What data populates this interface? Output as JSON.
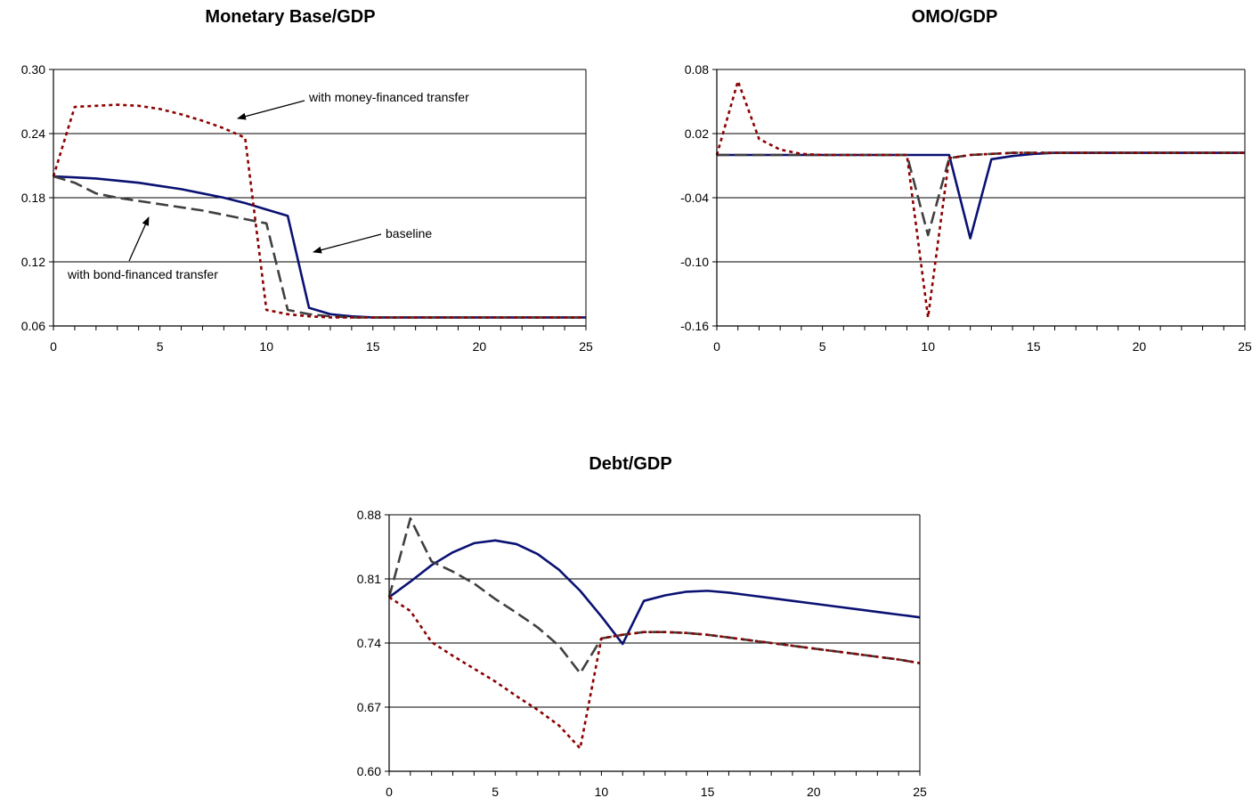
{
  "chart_data": [
    {
      "type": "line",
      "title": "Monetary Base/GDP",
      "x": [
        0,
        1,
        2,
        3,
        4,
        5,
        6,
        7,
        8,
        9,
        10,
        11,
        12,
        13,
        14,
        15,
        16,
        17,
        18,
        19,
        20,
        21,
        22,
        23,
        24,
        25
      ],
      "xlim": [
        0,
        25
      ],
      "xticks": [
        "0",
        "5",
        "10",
        "15",
        "20",
        "25"
      ],
      "ylim": [
        0.06,
        0.3
      ],
      "yticks": [
        "0.06",
        "0.12",
        "0.18",
        "0.24",
        "0.30"
      ],
      "grid": "horizontal",
      "series": [
        {
          "style": "solid",
          "color": "#0a1172",
          "values": [
            0.2,
            0.199,
            0.198,
            0.196,
            0.194,
            0.191,
            0.188,
            0.184,
            0.18,
            0.175,
            0.169,
            0.163,
            0.077,
            0.071,
            0.069,
            0.068,
            0.068,
            0.068,
            0.068,
            0.068,
            0.068,
            0.068,
            0.068,
            0.068,
            0.068,
            0.068
          ]
        },
        {
          "style": "dashed",
          "color": "#404040",
          "values": [
            0.2,
            0.194,
            0.184,
            0.18,
            0.177,
            0.174,
            0.171,
            0.168,
            0.164,
            0.16,
            0.156,
            0.075,
            0.071,
            0.069,
            0.068,
            0.068,
            0.068,
            0.068,
            0.068,
            0.068,
            0.068,
            0.068,
            0.068,
            0.068,
            0.068,
            0.068
          ]
        },
        {
          "style": "dotted",
          "color": "#8b0000",
          "values": [
            0.2,
            0.265,
            0.266,
            0.267,
            0.266,
            0.263,
            0.258,
            0.252,
            0.245,
            0.236,
            0.075,
            0.071,
            0.069,
            0.068,
            0.068,
            0.068,
            0.068,
            0.068,
            0.068,
            0.068,
            0.068,
            0.068,
            0.068,
            0.068,
            0.068,
            0.068
          ]
        }
      ],
      "annotations": [
        {
          "text": "with money-financed transfer"
        },
        {
          "text": "baseline"
        },
        {
          "text": "with bond-financed transfer"
        }
      ]
    },
    {
      "type": "line",
      "title": "OMO/GDP",
      "x": [
        0,
        1,
        2,
        3,
        4,
        5,
        6,
        7,
        8,
        9,
        10,
        11,
        12,
        13,
        14,
        15,
        16,
        17,
        18,
        19,
        20,
        21,
        22,
        23,
        24,
        25
      ],
      "xlim": [
        0,
        25
      ],
      "xticks": [
        "0",
        "5",
        "10",
        "15",
        "20",
        "25"
      ],
      "ylim": [
        -0.16,
        0.08
      ],
      "yticks": [
        "-0.16",
        "-0.10",
        "-0.04",
        "0.02",
        "0.08"
      ],
      "grid": "horizontal",
      "series": [
        {
          "style": "solid",
          "color": "#0a1172",
          "values": [
            0.0,
            0.0,
            0.0,
            0.0,
            0.0,
            0.0,
            0.0,
            0.0,
            0.0,
            0.0,
            0.0,
            0.0,
            -0.078,
            -0.004,
            -0.001,
            0.001,
            0.002,
            0.002,
            0.002,
            0.002,
            0.002,
            0.002,
            0.002,
            0.002,
            0.002,
            0.002
          ]
        },
        {
          "style": "dashed",
          "color": "#404040",
          "values": [
            0.0,
            0.0,
            0.0,
            0.0,
            0.0,
            0.0,
            0.0,
            0.0,
            0.0,
            0.0,
            -0.075,
            -0.003,
            0.0,
            0.001,
            0.002,
            0.002,
            0.002,
            0.002,
            0.002,
            0.002,
            0.002,
            0.002,
            0.002,
            0.002,
            0.002,
            0.002
          ]
        },
        {
          "style": "dotted",
          "color": "#8b0000",
          "values": [
            0.0,
            0.069,
            0.015,
            0.005,
            0.001,
            0.0,
            0.0,
            0.0,
            0.0,
            0.0,
            -0.152,
            -0.003,
            0.0,
            0.001,
            0.002,
            0.002,
            0.002,
            0.002,
            0.002,
            0.002,
            0.002,
            0.002,
            0.002,
            0.002,
            0.002,
            0.002
          ]
        }
      ]
    },
    {
      "type": "line",
      "title": "Debt/GDP",
      "x": [
        0,
        1,
        2,
        3,
        4,
        5,
        6,
        7,
        8,
        9,
        10,
        11,
        12,
        13,
        14,
        15,
        16,
        17,
        18,
        19,
        20,
        21,
        22,
        23,
        24,
        25
      ],
      "xlim": [
        0,
        25
      ],
      "xticks": [
        "0",
        "5",
        "10",
        "15",
        "20",
        "25"
      ],
      "ylim": [
        0.6,
        0.88
      ],
      "yticks": [
        "0.60",
        "0.67",
        "0.74",
        "0.81",
        "0.88"
      ],
      "grid": "horizontal",
      "series": [
        {
          "style": "solid",
          "color": "#0a1172",
          "values": [
            0.79,
            0.807,
            0.825,
            0.839,
            0.849,
            0.852,
            0.848,
            0.837,
            0.82,
            0.797,
            0.769,
            0.739,
            0.786,
            0.792,
            0.796,
            0.797,
            0.795,
            0.792,
            0.789,
            0.786,
            0.783,
            0.78,
            0.777,
            0.774,
            0.771,
            0.768
          ]
        },
        {
          "style": "dashed",
          "color": "#404040",
          "values": [
            0.79,
            0.876,
            0.829,
            0.818,
            0.805,
            0.788,
            0.773,
            0.757,
            0.737,
            0.707,
            0.745,
            0.749,
            0.752,
            0.752,
            0.751,
            0.749,
            0.746,
            0.743,
            0.74,
            0.737,
            0.734,
            0.731,
            0.728,
            0.725,
            0.722,
            0.718
          ]
        },
        {
          "style": "dotted",
          "color": "#8b0000",
          "values": [
            0.79,
            0.775,
            0.741,
            0.726,
            0.712,
            0.698,
            0.682,
            0.667,
            0.65,
            0.625,
            0.745,
            0.749,
            0.752,
            0.752,
            0.751,
            0.749,
            0.746,
            0.743,
            0.74,
            0.737,
            0.734,
            0.731,
            0.728,
            0.725,
            0.722,
            0.718
          ]
        }
      ]
    }
  ]
}
